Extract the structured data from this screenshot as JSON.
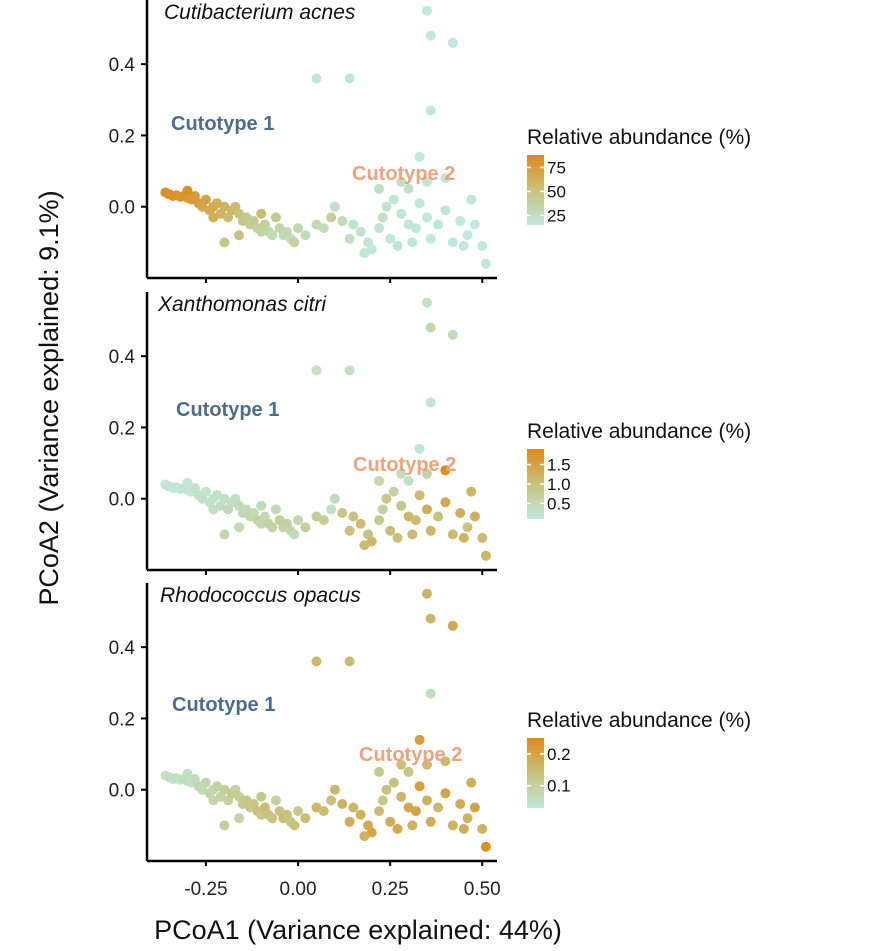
{
  "chart_data": {
    "type": "scatter",
    "xlabel": "PCoA1 (Variance explained: 44%)",
    "ylabel": "PCoA2 (Variance explained: 9.1%)",
    "xlim": [
      -0.41,
      0.54
    ],
    "ylim": [
      -0.2,
      0.58
    ],
    "x_ticks": [
      -0.25,
      0.0,
      0.25,
      0.5
    ],
    "x_tick_labels": [
      "-0.25",
      "0.00",
      "0.25",
      "0.50"
    ],
    "y_ticks": [
      0.0,
      0.2,
      0.4
    ],
    "y_tick_labels": [
      "0.0",
      "0.2",
      "0.4"
    ],
    "points": [
      [
        -0.36,
        0.04
      ],
      [
        -0.35,
        0.035
      ],
      [
        -0.34,
        0.03
      ],
      [
        -0.33,
        0.032
      ],
      [
        -0.32,
        0.028
      ],
      [
        -0.31,
        0.03
      ],
      [
        -0.3,
        0.025
      ],
      [
        -0.29,
        0.02
      ],
      [
        -0.28,
        0.03
      ],
      [
        -0.3,
        0.045
      ],
      [
        -0.27,
        0.01
      ],
      [
        -0.26,
        0.0
      ],
      [
        -0.25,
        0.02
      ],
      [
        -0.24,
        -0.01
      ],
      [
        -0.23,
        0.0
      ],
      [
        -0.22,
        0.01
      ],
      [
        -0.21,
        -0.02
      ],
      [
        -0.2,
        0.0
      ],
      [
        -0.19,
        -0.03
      ],
      [
        -0.18,
        -0.01
      ],
      [
        -0.17,
        0.0
      ],
      [
        -0.16,
        -0.02
      ],
      [
        -0.15,
        -0.04
      ],
      [
        -0.14,
        -0.03
      ],
      [
        -0.13,
        -0.05
      ],
      [
        -0.12,
        -0.04
      ],
      [
        -0.11,
        -0.06
      ],
      [
        -0.1,
        -0.07
      ],
      [
        -0.09,
        -0.05
      ],
      [
        -0.08,
        -0.07
      ],
      [
        -0.07,
        -0.08
      ],
      [
        -0.05,
        -0.06
      ],
      [
        -0.04,
        -0.08
      ],
      [
        -0.03,
        -0.07
      ],
      [
        -0.02,
        -0.09
      ],
      [
        0.0,
        -0.06
      ],
      [
        0.02,
        -0.08
      ],
      [
        0.05,
        -0.05
      ],
      [
        0.07,
        -0.06
      ],
      [
        -0.16,
        -0.08
      ],
      [
        -0.23,
        -0.03
      ],
      [
        -0.2,
        -0.1
      ],
      [
        -0.1,
        -0.02
      ],
      [
        -0.06,
        -0.03
      ],
      [
        0.1,
        0.0
      ],
      [
        0.12,
        -0.04
      ],
      [
        0.15,
        -0.05
      ],
      [
        0.14,
        -0.09
      ],
      [
        0.17,
        -0.07
      ],
      [
        0.19,
        -0.1
      ],
      [
        0.2,
        -0.12
      ],
      [
        0.22,
        -0.06
      ],
      [
        0.23,
        -0.03
      ],
      [
        0.25,
        -0.09
      ],
      [
        0.26,
        0.02
      ],
      [
        0.28,
        -0.02
      ],
      [
        0.3,
        -0.05
      ],
      [
        0.31,
        -0.1
      ],
      [
        0.33,
        0.01
      ],
      [
        0.35,
        -0.03
      ],
      [
        0.36,
        -0.09
      ],
      [
        0.38,
        -0.05
      ],
      [
        0.4,
        -0.01
      ],
      [
        0.42,
        -0.1
      ],
      [
        0.44,
        -0.04
      ],
      [
        0.46,
        -0.08
      ],
      [
        0.47,
        0.02
      ],
      [
        0.48,
        -0.05
      ],
      [
        0.5,
        -0.11
      ],
      [
        0.51,
        -0.16
      ],
      [
        0.3,
        0.05
      ],
      [
        0.35,
        0.07
      ],
      [
        0.28,
        0.07
      ],
      [
        0.27,
        -0.11
      ],
      [
        0.22,
        0.05
      ],
      [
        0.18,
        -0.13
      ],
      [
        0.09,
        -0.03
      ],
      [
        -0.01,
        -0.1
      ],
      [
        0.33,
        0.14
      ],
      [
        0.36,
        0.27
      ],
      [
        0.05,
        0.36
      ],
      [
        0.14,
        0.36
      ],
      [
        0.35,
        0.55
      ],
      [
        0.36,
        0.48
      ],
      [
        0.42,
        0.46
      ],
      [
        0.4,
        0.08
      ],
      [
        0.24,
        0.0
      ],
      [
        0.32,
        -0.06
      ],
      [
        0.45,
        -0.11
      ]
    ],
    "panels": [
      {
        "title": "Cutibacterium acnes",
        "legend_title": "Relative abundance (%)",
        "legend_ticks": [
          75,
          50,
          25
        ],
        "legend_tick_labels": [
          "75",
          "50",
          "25"
        ],
        "legend_range": [
          15,
          88
        ],
        "annotations": [
          "Cutotype 1",
          "Cutotype 2"
        ],
        "abundance": [
          85,
          84,
          82,
          83,
          80,
          82,
          78,
          77,
          76,
          84,
          74,
          70,
          72,
          66,
          68,
          64,
          60,
          62,
          56,
          58,
          55,
          50,
          48,
          46,
          42,
          44,
          38,
          36,
          40,
          34,
          30,
          35,
          28,
          30,
          26,
          32,
          28,
          30,
          27,
          50,
          65,
          48,
          55,
          45,
          24,
          28,
          22,
          24,
          20,
          18,
          17,
          20,
          22,
          16,
          18,
          18,
          16,
          14,
          17,
          15,
          14,
          16,
          18,
          14,
          15,
          13,
          16,
          14,
          12,
          13,
          22,
          18,
          24,
          20,
          24,
          18,
          38,
          36,
          14,
          12,
          16,
          18,
          10,
          11,
          12,
          14,
          20,
          16,
          13
        ]
      },
      {
        "title": "Xanthomonas citri",
        "legend_title": "Relative abundance (%)",
        "legend_ticks": [
          1.5,
          1.0,
          0.5
        ],
        "legend_tick_labels": [
          "1.5",
          "1.0",
          "0.5"
        ],
        "legend_range": [
          0.1,
          1.9
        ],
        "annotations": [
          "Cutotype 1",
          "Cutotype 2"
        ],
        "abundance": [
          0.15,
          0.18,
          0.12,
          0.2,
          0.15,
          0.18,
          0.2,
          0.15,
          0.22,
          0.12,
          0.25,
          0.3,
          0.2,
          0.28,
          0.25,
          0.3,
          0.35,
          0.3,
          0.4,
          0.35,
          0.3,
          0.45,
          0.5,
          0.4,
          0.55,
          0.45,
          0.6,
          0.55,
          0.5,
          0.65,
          0.6,
          0.7,
          0.6,
          0.65,
          0.55,
          0.5,
          0.7,
          0.8,
          0.75,
          0.45,
          0.35,
          0.5,
          0.4,
          0.5,
          0.4,
          0.9,
          0.95,
          1.0,
          1.1,
          1.0,
          1.15,
          0.8,
          0.6,
          1.05,
          0.6,
          0.9,
          1.2,
          1.1,
          1.1,
          1.3,
          1.2,
          1.0,
          1.4,
          1.1,
          1.3,
          1.0,
          1.2,
          1.3,
          1.1,
          1.2,
          0.3,
          0.6,
          0.4,
          1.0,
          0.5,
          1.1,
          0.3,
          0.4,
          0.2,
          0.2,
          0.3,
          0.3,
          0.3,
          0.5,
          0.4,
          1.85,
          0.9,
          1.1,
          1.2
        ]
      },
      {
        "title": "Rhodococcus opacus",
        "legend_title": "Relative abundance (%)",
        "legend_ticks": [
          0.2,
          0.1
        ],
        "legend_tick_labels": [
          "0.2",
          "0.1"
        ],
        "legend_range": [
          0.03,
          0.25
        ],
        "annotations": [
          "Cutotype 1",
          "Cutotype 2"
        ],
        "abundance": [
          0.05,
          0.06,
          0.05,
          0.06,
          0.05,
          0.06,
          0.07,
          0.05,
          0.07,
          0.06,
          0.08,
          0.07,
          0.08,
          0.09,
          0.08,
          0.1,
          0.09,
          0.11,
          0.1,
          0.12,
          0.1,
          0.11,
          0.12,
          0.13,
          0.12,
          0.13,
          0.14,
          0.12,
          0.15,
          0.14,
          0.13,
          0.14,
          0.15,
          0.14,
          0.13,
          0.12,
          0.15,
          0.16,
          0.15,
          0.09,
          0.08,
          0.1,
          0.12,
          0.1,
          0.16,
          0.17,
          0.16,
          0.18,
          0.17,
          0.19,
          0.2,
          0.15,
          0.12,
          0.18,
          0.14,
          0.16,
          0.19,
          0.17,
          0.21,
          0.17,
          0.18,
          0.16,
          0.2,
          0.17,
          0.19,
          0.17,
          0.18,
          0.2,
          0.17,
          0.24,
          0.13,
          0.15,
          0.14,
          0.19,
          0.12,
          0.17,
          0.14,
          0.14,
          0.21,
          0.07,
          0.16,
          0.15,
          0.17,
          0.16,
          0.19,
          0.15,
          0.14,
          0.2,
          0.18
        ]
      }
    ],
    "colorscale": [
      "#bfe9dc",
      "#c8c27a",
      "#df8a17"
    ]
  }
}
